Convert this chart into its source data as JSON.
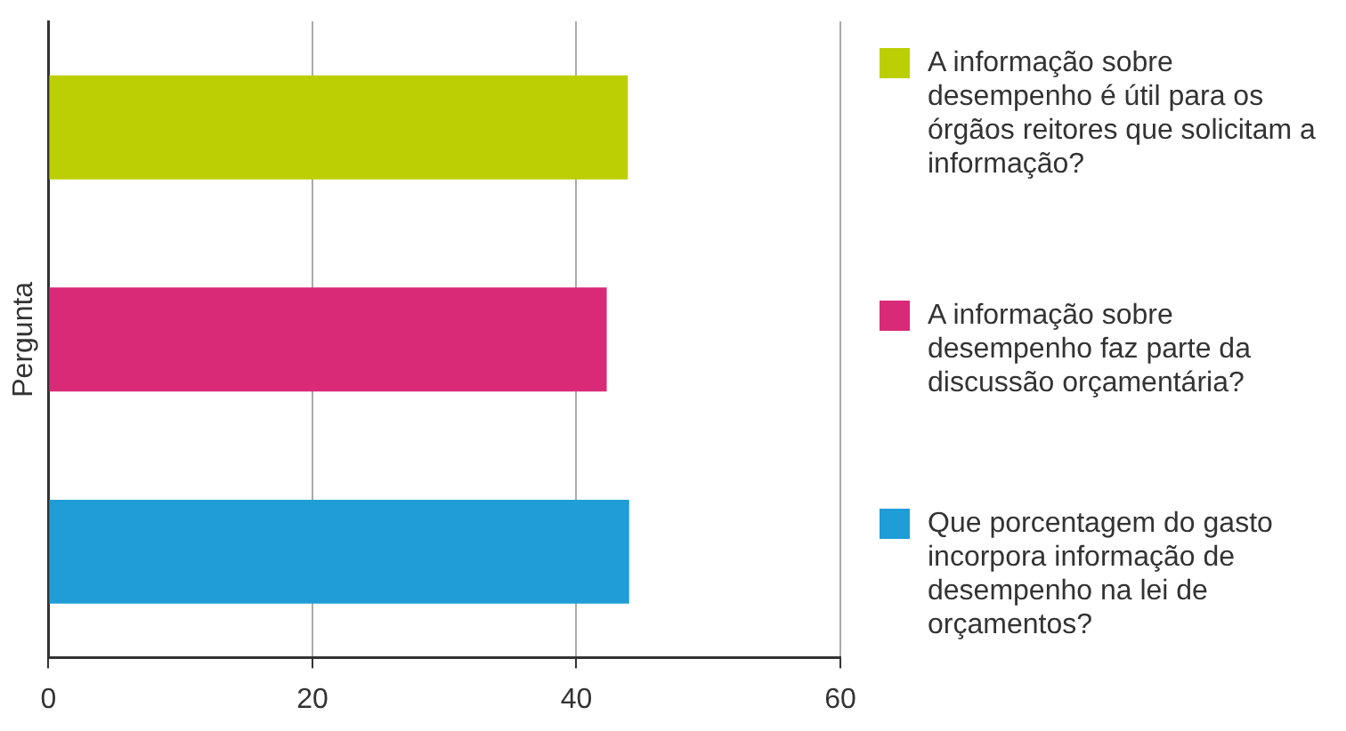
{
  "chart_data": {
    "type": "bar",
    "orientation": "horizontal",
    "ylabel": "Pergunta",
    "categories": [
      null,
      null,
      null
    ],
    "series": [
      {
        "name": "A informação sobre desempenho é útil para os órgãos reitores que solicitam a informação?",
        "color": "#bccf04",
        "values": [
          43.9,
          null,
          null
        ]
      },
      {
        "name": "A informação sobre desempenho faz parte da discussão orçamentária?",
        "color": "#d92a78",
        "values": [
          null,
          42.3,
          null
        ]
      },
      {
        "name": "Que porcentagem do gasto incorpora informação de desempenho na lei de orçamentos?",
        "color": "#209dd7",
        "values": [
          null,
          null,
          44.0
        ]
      }
    ],
    "xlim": [
      0,
      60
    ],
    "xticks": [
      0,
      20,
      40,
      60
    ],
    "grid": "x",
    "tick_labels": "x",
    "legend": "right"
  }
}
